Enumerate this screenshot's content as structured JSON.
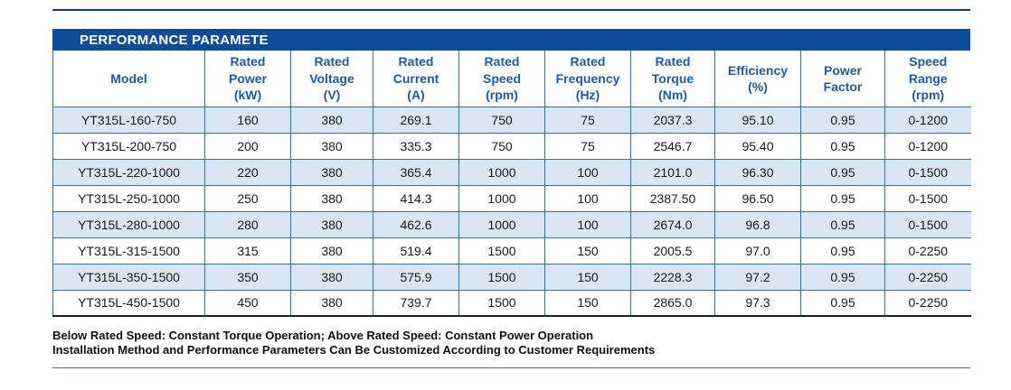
{
  "title_bar": {
    "text": "PERFORMANCE PARAMETE"
  },
  "table": {
    "columns": [
      {
        "id": "model",
        "label": "Model"
      },
      {
        "id": "rated-power",
        "label": "Rated\nPower\n(kW)"
      },
      {
        "id": "rated-voltage",
        "label": "Rated\nVoltage\n(V)"
      },
      {
        "id": "rated-current",
        "label": "Rated\nCurrent\n(A)"
      },
      {
        "id": "rated-speed",
        "label": "Rated\nSpeed\n(rpm)"
      },
      {
        "id": "rated-frequency",
        "label": "Rated\nFrequency\n(Hz)"
      },
      {
        "id": "rated-torque",
        "label": "Rated\nTorque\n(Nm)"
      },
      {
        "id": "efficiency",
        "label": "Efficiency\n(%)"
      },
      {
        "id": "power-factor",
        "label": "Power\nFactor"
      },
      {
        "id": "speed-range",
        "label": "Speed\nRange\n(rpm)"
      }
    ],
    "rows": [
      [
        "YT315L-160-750",
        "160",
        "380",
        "269.1",
        "750",
        "75",
        "2037.3",
        "95.10",
        "0.95",
        "0-1200"
      ],
      [
        "YT315L-200-750",
        "200",
        "380",
        "335.3",
        "750",
        "75",
        "2546.7",
        "95.40",
        "0.95",
        "0-1200"
      ],
      [
        "YT315L-220-1000",
        "220",
        "380",
        "365.4",
        "1000",
        "100",
        "2101.0",
        "96.30",
        "0.95",
        "0-1500"
      ],
      [
        "YT315L-250-1000",
        "250",
        "380",
        "414.3",
        "1000",
        "100",
        "2387.50",
        "96.50",
        "0.95",
        "0-1500"
      ],
      [
        "YT315L-280-1000",
        "280",
        "380",
        "462.6",
        "1000",
        "100",
        "2674.0",
        "96.8",
        "0.95",
        "0-1500"
      ],
      [
        "YT315L-315-1500",
        "315",
        "380",
        "519.4",
        "1500",
        "150",
        "2005.5",
        "97.0",
        "0.95",
        "0-2250"
      ],
      [
        "YT315L-350-1500",
        "350",
        "380",
        "575.9",
        "1500",
        "150",
        "2228.3",
        "97.2",
        "0.95",
        "0-2250"
      ],
      [
        "YT315L-450-1500",
        "450",
        "380",
        "739.7",
        "1500",
        "150",
        "2865.0",
        "97.3",
        "0.95",
        "0-2250"
      ]
    ]
  },
  "notes": [
    "Below Rated Speed: Constant Torque Operation; Above Rated Speed: Constant Power Operation",
    "Installation Method and Performance Parameters Can Be Customized According to Customer Requirements"
  ],
  "colors": {
    "title_bar_bg": "#0D4C99",
    "title_text": "#FFFFFF",
    "header_text": "#1A5CA8",
    "grid_line": "#2E74B5",
    "stripe_bg": "#D9E6F4",
    "body_text": "#1A1A1A",
    "table_bottom_border": "#1F1F1F",
    "top_rule": "#1F3864",
    "bottom_rule": "#44699D"
  }
}
